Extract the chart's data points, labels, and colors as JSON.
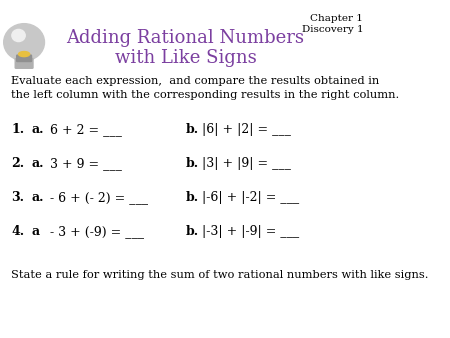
{
  "title_line1": "Adding Rational Numbers",
  "title_line2": "with Like Signs",
  "title_color": "#7B3FA0",
  "chapter_text": "Chapter 1\nDiscovery 1",
  "chapter_color": "#000000",
  "intro_text": "Evaluate each expression,  and compare the results obtained in\nthe left column with the corresponding results in the right column.",
  "problems": [
    {
      "num": "1.",
      "left_label": "a.",
      "left_expr": "6 + 2 = ___",
      "right_label": "b.",
      "right_expr": "|6| + |2| = ___"
    },
    {
      "num": "2.",
      "left_label": "a.",
      "left_expr": "3 + 9 = ___",
      "right_label": "b.",
      "right_expr": "|3| + |9| = ___"
    },
    {
      "num": "3.",
      "left_label": "a.",
      "left_expr": "- 6 + (- 2) = ___",
      "right_label": "b.",
      "right_expr": "|-6| + |-2| = ___"
    },
    {
      "num": "4.",
      "left_label": "a",
      "left_expr": "- 3 + (-9) = ___",
      "right_label": "b.",
      "right_expr": "|-3| + |-9| = ___"
    }
  ],
  "footer_text": "State a rule for writing the sum of two rational numbers with like signs.",
  "background_color": "#FFFFFF",
  "text_color": "#000000",
  "bold_color": "#000000"
}
